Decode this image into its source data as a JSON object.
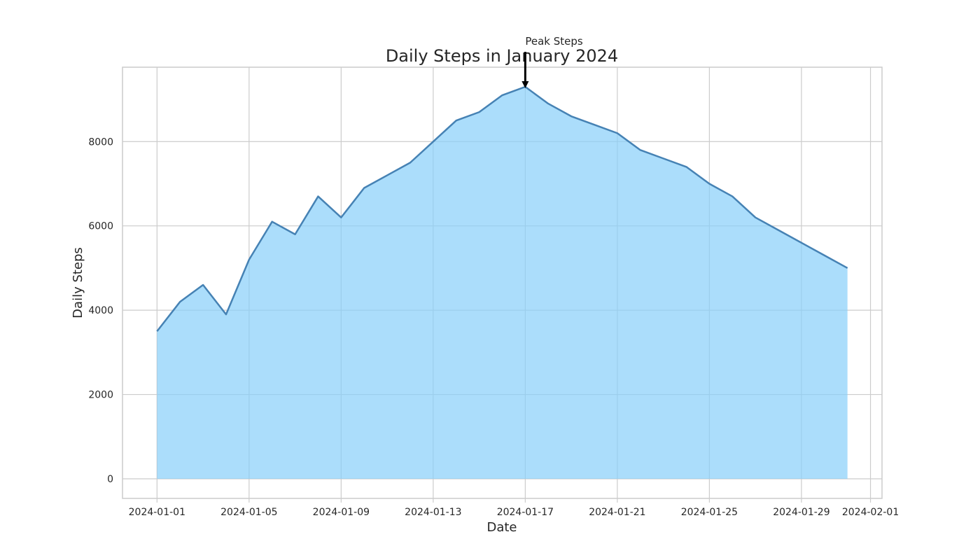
{
  "chart_data": {
    "type": "area",
    "title": "Daily Steps in January 2024",
    "xlabel": "Date",
    "ylabel": "Daily Steps",
    "x": [
      "2024-01-01",
      "2024-01-02",
      "2024-01-03",
      "2024-01-04",
      "2024-01-05",
      "2024-01-06",
      "2024-01-07",
      "2024-01-08",
      "2024-01-09",
      "2024-01-10",
      "2024-01-11",
      "2024-01-12",
      "2024-01-13",
      "2024-01-14",
      "2024-01-15",
      "2024-01-16",
      "2024-01-17",
      "2024-01-18",
      "2024-01-19",
      "2024-01-20",
      "2024-01-21",
      "2024-01-22",
      "2024-01-23",
      "2024-01-24",
      "2024-01-25",
      "2024-01-26",
      "2024-01-27",
      "2024-01-28",
      "2024-01-29",
      "2024-01-30",
      "2024-01-31"
    ],
    "values": [
      3500,
      4200,
      4600,
      3900,
      5200,
      6100,
      5800,
      6700,
      6200,
      6900,
      7200,
      7500,
      8000,
      8500,
      8700,
      9100,
      9300,
      8900,
      8600,
      8400,
      8200,
      7800,
      7600,
      7400,
      7000,
      6700,
      6200,
      5900,
      5600,
      5300,
      5000
    ],
    "xlim": [
      "2023-12-30.5",
      "2024-02-01.5"
    ],
    "xticks": [
      "2024-01-01",
      "2024-01-05",
      "2024-01-09",
      "2024-01-13",
      "2024-01-17",
      "2024-01-21",
      "2024-01-25",
      "2024-01-29",
      "2024-02-01"
    ],
    "ylim": [
      -465,
      9765
    ],
    "yticks": [
      0,
      2000,
      4000,
      6000,
      8000
    ],
    "grid": true,
    "annotation": {
      "text": "Peak Steps",
      "x": "2024-01-17",
      "y": 9300
    },
    "colors": {
      "fill": "#87CEFA",
      "line": "#4682B4",
      "grid": "#cccccc",
      "spine": "#cccccc",
      "arrow": "#000000"
    }
  }
}
